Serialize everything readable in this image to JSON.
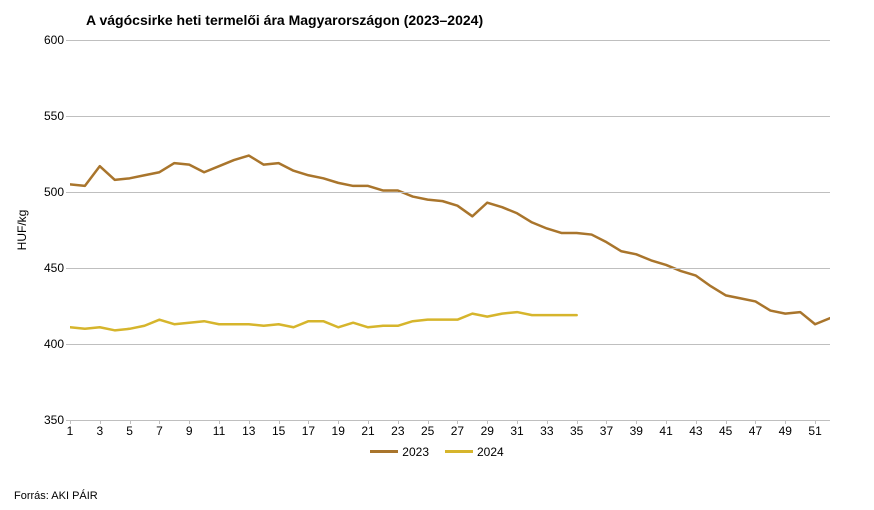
{
  "title": "A vágócsirke heti termelői ára Magyarországon (2023–2024)",
  "source": "Forrás: AKI PÁIR",
  "chart": {
    "type": "line",
    "ylabel": "HUF/kg",
    "title_fontsize": 14,
    "label_fontsize": 12,
    "tick_fontsize": 12,
    "background_color": "#ffffff",
    "grid_color": "#bfbfbf",
    "line_width": 2.5,
    "xlim": [
      1,
      52
    ],
    "ylim": [
      350,
      600
    ],
    "ytick_step": 50,
    "yticks": [
      350,
      400,
      450,
      500,
      550,
      600
    ],
    "xticks": [
      1,
      3,
      5,
      7,
      9,
      11,
      13,
      15,
      17,
      19,
      21,
      23,
      25,
      27,
      29,
      31,
      33,
      35,
      37,
      39,
      41,
      43,
      45,
      47,
      49,
      51
    ],
    "xvalues": [
      1,
      2,
      3,
      4,
      5,
      6,
      7,
      8,
      9,
      10,
      11,
      12,
      13,
      14,
      15,
      16,
      17,
      18,
      19,
      20,
      21,
      22,
      23,
      24,
      25,
      26,
      27,
      28,
      29,
      30,
      31,
      32,
      33,
      34,
      35,
      36,
      37,
      38,
      39,
      40,
      41,
      42,
      43,
      44,
      45,
      46,
      47,
      48,
      49,
      50,
      51,
      52
    ],
    "series": [
      {
        "name": "2023",
        "color": "#a9752c",
        "values": [
          505,
          504,
          517,
          508,
          509,
          511,
          513,
          519,
          518,
          513,
          517,
          521,
          524,
          518,
          519,
          514,
          511,
          509,
          506,
          504,
          504,
          501,
          501,
          497,
          495,
          494,
          491,
          484,
          493,
          490,
          486,
          480,
          476,
          473,
          473,
          472,
          467,
          461,
          459,
          455,
          452,
          448,
          445,
          438,
          432,
          430,
          428,
          422,
          420,
          421,
          413,
          417
        ]
      },
      {
        "name": "2024",
        "color": "#d6b52c",
        "values": [
          411,
          410,
          411,
          409,
          410,
          412,
          416,
          413,
          414,
          415,
          413,
          413,
          413,
          412,
          413,
          411,
          415,
          415,
          411,
          414,
          411,
          412,
          412,
          415,
          416,
          416,
          416,
          420,
          418,
          420,
          421,
          419,
          419,
          419,
          419
        ]
      }
    ],
    "legend_position": "bottom"
  }
}
